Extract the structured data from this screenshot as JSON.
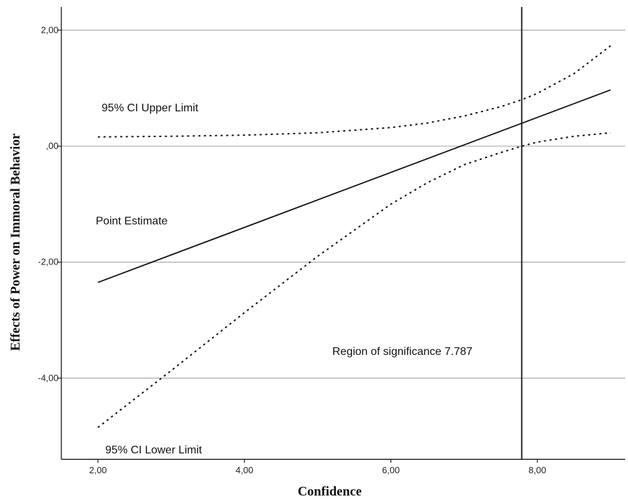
{
  "chart_data": {
    "type": "line",
    "title": "",
    "xlabel": "Confidence",
    "ylabel": "Effects of Power on Immoral Behavior",
    "xlim": [
      1.5,
      9.2
    ],
    "ylim": [
      -5.4,
      2.4
    ],
    "x_ticks": [
      {
        "value": 2,
        "label": "2,00"
      },
      {
        "value": 4,
        "label": "4,00"
      },
      {
        "value": 6,
        "label": "6,00"
      },
      {
        "value": 8,
        "label": "8,00"
      }
    ],
    "y_ticks": [
      {
        "value": 2,
        "label": "2,00"
      },
      {
        "value": 0,
        "label": ",00"
      },
      {
        "value": -2,
        "label": "-2,00"
      },
      {
        "value": -4,
        "label": "-4,00"
      }
    ],
    "grid": "horizontal",
    "series": [
      {
        "name": "Point Estimate",
        "style": "solid",
        "x": [
          2.0,
          9.0
        ],
        "y": [
          -2.35,
          0.97
        ]
      },
      {
        "name": "95% CI Upper Limit",
        "style": "dotted",
        "x": [
          2.0,
          3.0,
          4.0,
          5.0,
          6.0,
          6.5,
          7.0,
          7.5,
          7.787,
          8.0,
          8.5,
          9.0
        ],
        "y": [
          0.16,
          0.17,
          0.19,
          0.23,
          0.32,
          0.4,
          0.52,
          0.68,
          0.8,
          0.91,
          1.25,
          1.73
        ]
      },
      {
        "name": "95% CI Lower Limit",
        "style": "dotted",
        "x": [
          2.0,
          3.0,
          4.0,
          5.0,
          6.0,
          6.5,
          7.0,
          7.5,
          7.787,
          8.0,
          8.5,
          9.0
        ],
        "y": [
          -4.85,
          -3.87,
          -2.87,
          -1.9,
          -1.0,
          -0.63,
          -0.32,
          -0.11,
          0.0,
          0.07,
          0.17,
          0.23
        ]
      }
    ],
    "reference_line": {
      "axis": "x",
      "value": 7.787
    },
    "annotations": [
      {
        "text": "95% CI Upper Limit",
        "x": 2.05,
        "y": 0.6
      },
      {
        "text": "Point Estimate",
        "x": 1.97,
        "y": -1.35
      },
      {
        "text": "Region of significance 7.787",
        "x": 5.2,
        "y": -3.6
      },
      {
        "text": "95% CI Lower Limit",
        "x": 2.1,
        "y": -5.3
      }
    ],
    "colors": {
      "lines": "#111111",
      "grid": "#b3b3b3",
      "axis": "#222222"
    }
  }
}
